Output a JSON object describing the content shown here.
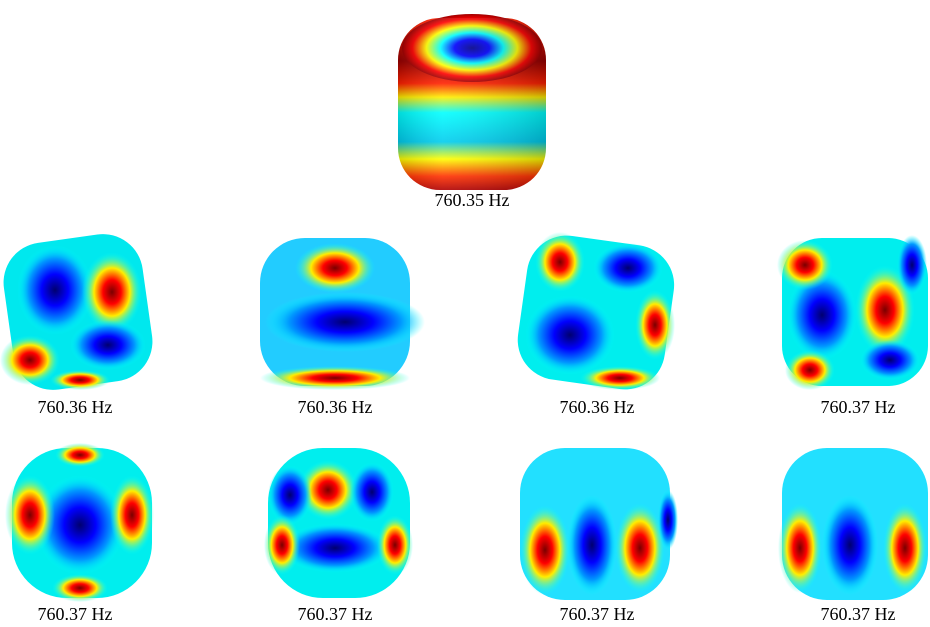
{
  "panels": [
    {
      "label": "760.35 Hz"
    },
    {
      "label": "760.36 Hz"
    },
    {
      "label": "760.36 Hz"
    },
    {
      "label": "760.36 Hz"
    },
    {
      "label": "760.37 Hz"
    },
    {
      "label": "760.37 Hz"
    },
    {
      "label": "760.37 Hz"
    },
    {
      "label": "760.37 Hz"
    },
    {
      "label": "760.37 Hz"
    }
  ]
}
